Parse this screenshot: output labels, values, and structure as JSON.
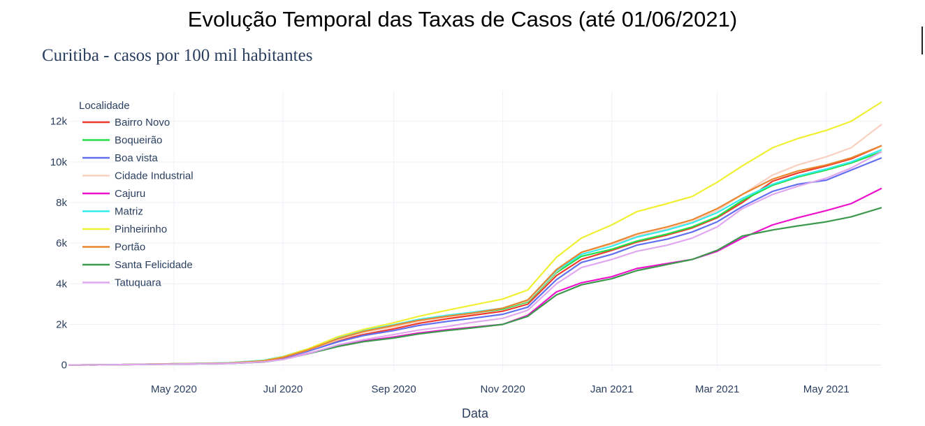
{
  "figure": {
    "suptitle": "Evolução Temporal das Taxas de Casos (até 01/06/2021)"
  },
  "chart_data": {
    "type": "line",
    "title": "Curitiba - casos por 100 mil habitantes",
    "xlabel": "Data",
    "ylabel": "",
    "legend_title": "Localidade",
    "legend_position": "top-left",
    "grid": true,
    "x_range": [
      "2020-03-03",
      "2021-06-01"
    ],
    "ylim": [
      -250,
      13500
    ],
    "x_ticks": [
      {
        "date": "2020-05-01",
        "label": "May 2020"
      },
      {
        "date": "2020-07-01",
        "label": "Jul 2020"
      },
      {
        "date": "2020-09-01",
        "label": "Sep 2020"
      },
      {
        "date": "2020-11-01",
        "label": "Nov 2020"
      },
      {
        "date": "2021-01-01",
        "label": "Jan 2021"
      },
      {
        "date": "2021-03-01",
        "label": "Mar 2021"
      },
      {
        "date": "2021-05-01",
        "label": "May 2021"
      }
    ],
    "y_ticks": [
      {
        "value": 0,
        "label": "0"
      },
      {
        "value": 2000,
        "label": "2k"
      },
      {
        "value": 4000,
        "label": "4k"
      },
      {
        "value": 6000,
        "label": "6k"
      },
      {
        "value": 8000,
        "label": "8k"
      },
      {
        "value": 10000,
        "label": "10k"
      },
      {
        "value": 12000,
        "label": "12k"
      }
    ],
    "x": [
      "2020-03-03",
      "2020-04-01",
      "2020-05-01",
      "2020-06-01",
      "2020-06-20",
      "2020-07-01",
      "2020-07-15",
      "2020-08-01",
      "2020-08-15",
      "2020-09-01",
      "2020-09-15",
      "2020-10-01",
      "2020-10-15",
      "2020-11-01",
      "2020-11-15",
      "2020-12-01",
      "2020-12-15",
      "2021-01-01",
      "2021-01-15",
      "2021-02-01",
      "2021-02-15",
      "2021-03-01",
      "2021-03-15",
      "2021-04-01",
      "2021-04-15",
      "2021-05-01",
      "2021-05-15",
      "2021-06-01"
    ],
    "series": [
      {
        "name": "Bairro Novo",
        "color": "#ef3b2c",
        "values": [
          0,
          20,
          60,
          100,
          200,
          370,
          700,
          1200,
          1500,
          1780,
          2050,
          2280,
          2450,
          2650,
          3000,
          4400,
          5200,
          5650,
          6050,
          6400,
          6750,
          7250,
          8000,
          9050,
          9450,
          9800,
          10150,
          10800
        ]
      },
      {
        "name": "Boqueirão",
        "color": "#22dd44",
        "values": [
          0,
          20,
          60,
          100,
          210,
          390,
          760,
          1300,
          1650,
          1950,
          2200,
          2400,
          2550,
          2750,
          3100,
          4550,
          5350,
          5700,
          6100,
          6450,
          6800,
          7300,
          8100,
          8850,
          9250,
          9600,
          9950,
          10500
        ]
      },
      {
        "name": "Boa vista",
        "color": "#6270f0",
        "values": [
          0,
          20,
          60,
          100,
          190,
          350,
          680,
          1150,
          1450,
          1700,
          1950,
          2150,
          2300,
          2500,
          2850,
          4200,
          5050,
          5450,
          5900,
          6200,
          6550,
          7050,
          7800,
          8550,
          8900,
          9100,
          9600,
          10200
        ]
      },
      {
        "name": "Cidade Industrial",
        "color": "#f9d0c0",
        "values": [
          0,
          20,
          60,
          100,
          200,
          380,
          740,
          1250,
          1600,
          1880,
          2150,
          2380,
          2550,
          2800,
          3150,
          4600,
          5550,
          5950,
          6350,
          6700,
          7050,
          7600,
          8400,
          9350,
          9850,
          10250,
          10700,
          11850
        ]
      },
      {
        "name": "Cajuru",
        "color": "#ee11cc",
        "values": [
          0,
          20,
          50,
          80,
          150,
          290,
          570,
          950,
          1180,
          1380,
          1580,
          1740,
          1860,
          2000,
          2450,
          3600,
          4050,
          4350,
          4750,
          5000,
          5200,
          5600,
          6250,
          6900,
          7250,
          7600,
          7950,
          8700
        ]
      },
      {
        "name": "Matriz",
        "color": "#33eeee",
        "values": [
          0,
          20,
          60,
          110,
          230,
          420,
          800,
          1350,
          1700,
          1980,
          2250,
          2450,
          2600,
          2800,
          3200,
          4650,
          5450,
          5850,
          6300,
          6650,
          7000,
          7500,
          8200,
          8900,
          9300,
          9650,
          10000,
          10600
        ]
      },
      {
        "name": "Pinheirinho",
        "color": "#f0f033",
        "values": [
          0,
          20,
          60,
          100,
          210,
          410,
          800,
          1400,
          1750,
          2080,
          2400,
          2700,
          2950,
          3250,
          3700,
          5300,
          6250,
          6900,
          7550,
          7950,
          8300,
          9000,
          9800,
          10700,
          11150,
          11550,
          12000,
          12950
        ]
      },
      {
        "name": "Portão",
        "color": "#ea8530",
        "values": [
          0,
          20,
          60,
          100,
          200,
          380,
          740,
          1300,
          1650,
          1950,
          2200,
          2400,
          2550,
          2800,
          3200,
          4700,
          5550,
          6000,
          6450,
          6800,
          7150,
          7700,
          8400,
          9150,
          9550,
          9850,
          10200,
          10800
        ]
      },
      {
        "name": "Santa Felicidade",
        "color": "#3c9a4f",
        "values": [
          0,
          20,
          50,
          80,
          150,
          280,
          550,
          920,
          1150,
          1330,
          1530,
          1700,
          1830,
          2000,
          2400,
          3450,
          3950,
          4250,
          4650,
          4950,
          5200,
          5650,
          6350,
          6650,
          6850,
          7050,
          7300,
          7750
        ]
      },
      {
        "name": "Tatuquara",
        "color": "#e0a8ef",
        "values": [
          0,
          20,
          50,
          80,
          160,
          270,
          560,
          1000,
          1250,
          1500,
          1720,
          1900,
          2100,
          2300,
          2700,
          4000,
          4800,
          5200,
          5600,
          5900,
          6250,
          6800,
          7700,
          8400,
          8800,
          9200,
          9700,
          10500
        ]
      }
    ]
  }
}
